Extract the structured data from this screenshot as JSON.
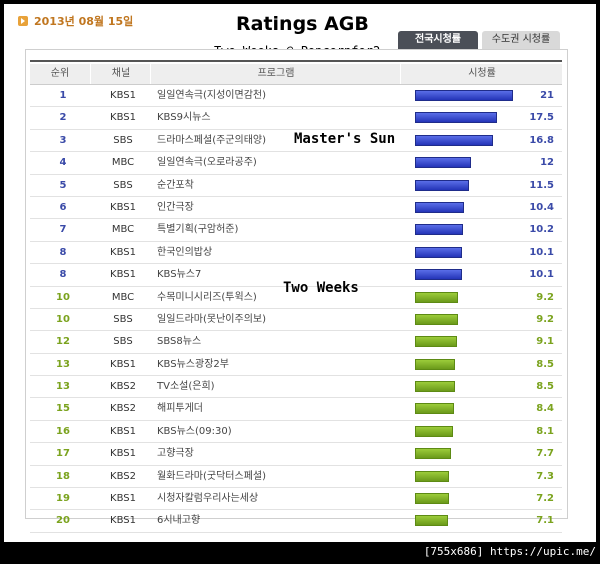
{
  "date": "2013년 08월 15일",
  "title": "Ratings AGB",
  "subtitle": "Two Weeks @ Popcornfor2",
  "tabs": {
    "nationwide": "전국시청률",
    "capital": "수도권 시청률"
  },
  "columns": {
    "rank": "순위",
    "channel": "채널",
    "program": "프로그램",
    "rating": "시청률"
  },
  "annotations": {
    "masters_sun": "Master's Sun",
    "two_weeks": "Two Weeks"
  },
  "colors": {
    "blue_bar": "#2e3fc8",
    "green_bar": "#7fb02a",
    "blue_text": "#3a4aa8",
    "green_text": "#7ba31e"
  },
  "rows": [
    {
      "rank": "1",
      "channel": "KBS1",
      "program": "일일연속극(지성이면감천)",
      "rating": 21,
      "rating_label": "21",
      "color": "blue"
    },
    {
      "rank": "2",
      "channel": "KBS1",
      "program": "KBS9시뉴스",
      "rating": 17.5,
      "rating_label": "17.5",
      "color": "blue"
    },
    {
      "rank": "3",
      "channel": "SBS",
      "program": "드라마스페셜(주군의태양)",
      "rating": 16.8,
      "rating_label": "16.8",
      "color": "blue"
    },
    {
      "rank": "4",
      "channel": "MBC",
      "program": "일일연속극(오로라공주)",
      "rating": 12,
      "rating_label": "12",
      "color": "blue"
    },
    {
      "rank": "5",
      "channel": "SBS",
      "program": "순간포착",
      "rating": 11.5,
      "rating_label": "11.5",
      "color": "blue"
    },
    {
      "rank": "6",
      "channel": "KBS1",
      "program": "인간극장",
      "rating": 10.4,
      "rating_label": "10.4",
      "color": "blue"
    },
    {
      "rank": "7",
      "channel": "MBC",
      "program": "특별기획(구암허준)",
      "rating": 10.2,
      "rating_label": "10.2",
      "color": "blue"
    },
    {
      "rank": "8",
      "channel": "KBS1",
      "program": "한국인의밥상",
      "rating": 10.1,
      "rating_label": "10.1",
      "color": "blue"
    },
    {
      "rank": "8",
      "channel": "KBS1",
      "program": "KBS뉴스7",
      "rating": 10.1,
      "rating_label": "10.1",
      "color": "blue"
    },
    {
      "rank": "10",
      "channel": "MBC",
      "program": "수목미니시리즈(투윅스)",
      "rating": 9.2,
      "rating_label": "9.2",
      "color": "green"
    },
    {
      "rank": "10",
      "channel": "SBS",
      "program": "일일드라마(못난이주의보)",
      "rating": 9.2,
      "rating_label": "9.2",
      "color": "green"
    },
    {
      "rank": "12",
      "channel": "SBS",
      "program": "SBS8뉴스",
      "rating": 9.1,
      "rating_label": "9.1",
      "color": "green"
    },
    {
      "rank": "13",
      "channel": "KBS1",
      "program": "KBS뉴스광장2부",
      "rating": 8.5,
      "rating_label": "8.5",
      "color": "green"
    },
    {
      "rank": "13",
      "channel": "KBS2",
      "program": "TV소설(은희)",
      "rating": 8.5,
      "rating_label": "8.5",
      "color": "green"
    },
    {
      "rank": "15",
      "channel": "KBS2",
      "program": "해피투게더",
      "rating": 8.4,
      "rating_label": "8.4",
      "color": "green"
    },
    {
      "rank": "16",
      "channel": "KBS1",
      "program": "KBS뉴스(09:30)",
      "rating": 8.1,
      "rating_label": "8.1",
      "color": "green"
    },
    {
      "rank": "17",
      "channel": "KBS1",
      "program": "고향극장",
      "rating": 7.7,
      "rating_label": "7.7",
      "color": "green"
    },
    {
      "rank": "18",
      "channel": "KBS2",
      "program": "월화드라마(굿닥터스페셜)",
      "rating": 7.3,
      "rating_label": "7.3",
      "color": "green"
    },
    {
      "rank": "19",
      "channel": "KBS1",
      "program": "시청자칼럼우리사는세상",
      "rating": 7.2,
      "rating_label": "7.2",
      "color": "green"
    },
    {
      "rank": "20",
      "channel": "KBS1",
      "program": "6시내고향",
      "rating": 7.1,
      "rating_label": "7.1",
      "color": "green"
    }
  ],
  "footer": "[755x686] https://upic.me/"
}
